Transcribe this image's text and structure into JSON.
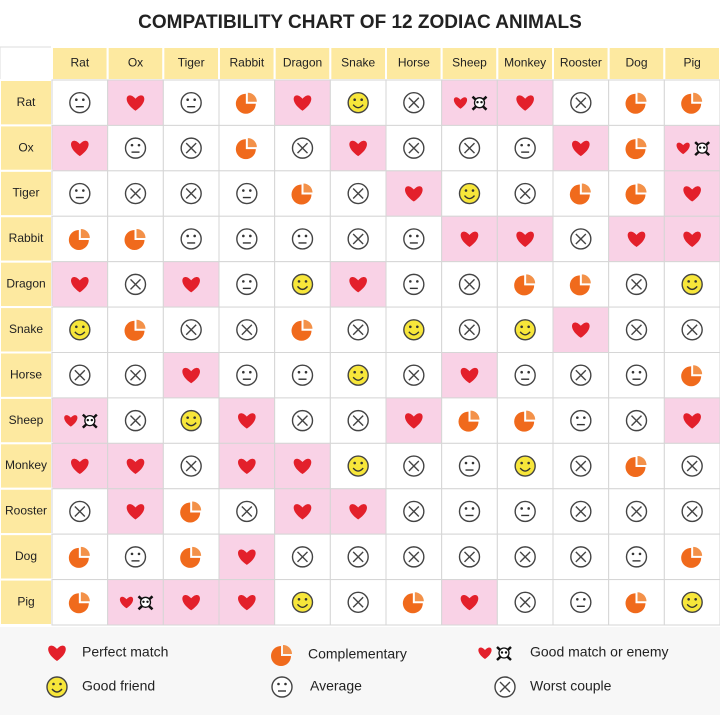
{
  "title": "COMPATIBILITY CHART OF 12 ZODIAC ANIMALS",
  "columns": [
    "Rat",
    "Ox",
    "Tiger",
    "Rabbit",
    "Dragon",
    "Snake",
    "Horse",
    "Sheep",
    "Monkey",
    "Rooster",
    "Dog",
    "Pig"
  ],
  "rows": [
    {
      "label": "Rat",
      "cells": [
        "A",
        "H",
        "A",
        "C",
        "H",
        "F",
        "X",
        "E",
        "H",
        "X",
        "C",
        "C"
      ]
    },
    {
      "label": "Ox",
      "cells": [
        "H",
        "A",
        "X",
        "C",
        "X",
        "H",
        "X",
        "X",
        "A",
        "H",
        "C",
        "E"
      ]
    },
    {
      "label": "Tiger",
      "cells": [
        "A",
        "X",
        "X",
        "A",
        "C",
        "X",
        "H",
        "F",
        "X",
        "C",
        "C",
        "H"
      ]
    },
    {
      "label": "Rabbit",
      "cells": [
        "C",
        "C",
        "A",
        "A",
        "A",
        "X",
        "A",
        "H",
        "H",
        "X",
        "H",
        "H"
      ]
    },
    {
      "label": "Dragon",
      "cells": [
        "H",
        "X",
        "H",
        "A",
        "F",
        "H",
        "A",
        "X",
        "C",
        "C",
        "X",
        "F"
      ]
    },
    {
      "label": "Snake",
      "cells": [
        "F",
        "C",
        "X",
        "X",
        "C",
        "X",
        "F",
        "X",
        "F",
        "H",
        "X",
        "X"
      ]
    },
    {
      "label": "Horse",
      "cells": [
        "X",
        "X",
        "H",
        "A",
        "A",
        "F",
        "X",
        "H",
        "A",
        "X",
        "A",
        "C"
      ]
    },
    {
      "label": "Sheep",
      "cells": [
        "E",
        "X",
        "F",
        "H",
        "X",
        "X",
        "H",
        "C",
        "C",
        "A",
        "X",
        "H"
      ]
    },
    {
      "label": "Monkey",
      "cells": [
        "H",
        "H",
        "X",
        "H",
        "H",
        "F",
        "X",
        "A",
        "F",
        "X",
        "C",
        "X"
      ]
    },
    {
      "label": "Rooster",
      "cells": [
        "X",
        "H",
        "C",
        "X",
        "H",
        "H",
        "X",
        "A",
        "A",
        "X",
        "X",
        "X"
      ]
    },
    {
      "label": "Dog",
      "cells": [
        "C",
        "A",
        "C",
        "H",
        "X",
        "X",
        "X",
        "X",
        "X",
        "X",
        "A",
        "C"
      ]
    },
    {
      "label": "Pig",
      "cells": [
        "C",
        "E",
        "H",
        "H",
        "F",
        "X",
        "C",
        "H",
        "X",
        "A",
        "C",
        "F"
      ]
    }
  ],
  "legend": [
    {
      "symbol": "H",
      "label": "Perfect match"
    },
    {
      "symbol": "C",
      "label": "Complementary"
    },
    {
      "symbol": "E",
      "label": "Good match or enemy"
    },
    {
      "symbol": "F",
      "label": "Good friend"
    },
    {
      "symbol": "A",
      "label": "Average"
    },
    {
      "symbol": "X",
      "label": "Worst couple"
    }
  ]
}
